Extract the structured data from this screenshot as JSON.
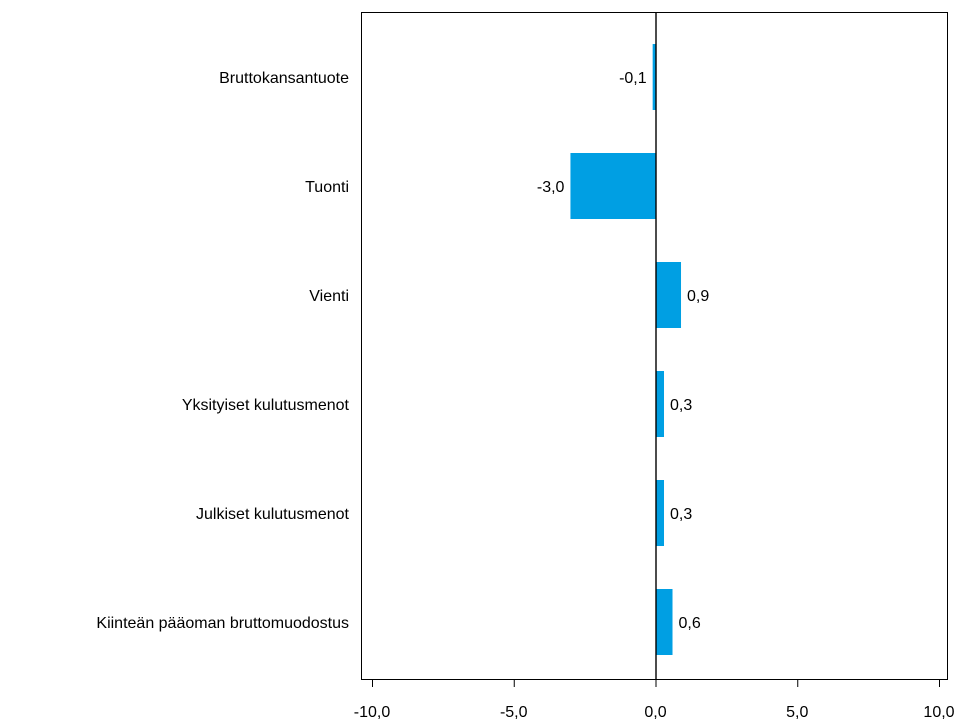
{
  "chart_data": {
    "type": "bar",
    "orientation": "horizontal",
    "categories": [
      "Bruttokansantuote",
      "Tuonti",
      "Vienti",
      "Yksityiset kulutusmenot",
      "Julkiset kulutusmenot",
      "Kiinteän pääoman bruttomuodostus"
    ],
    "values": [
      -0.1,
      -3.0,
      0.9,
      0.3,
      0.3,
      0.6
    ],
    "data_labels": [
      "-0,1",
      "-3,0",
      "0,9",
      "0,3",
      "0,3",
      "0,6"
    ],
    "xlim": [
      -10.0,
      10.0
    ],
    "xticks": [
      -10.0,
      -5.0,
      0.0,
      5.0,
      10.0
    ],
    "xtick_labels": [
      "-10,0",
      "-5,0",
      "0,0",
      "5,0",
      "10,0"
    ],
    "title": "",
    "xlabel": "",
    "ylabel": "",
    "grid": false,
    "legend": "none",
    "colors": {
      "bar": "#009fe3",
      "axis": "#000000",
      "text": "#000000"
    }
  }
}
